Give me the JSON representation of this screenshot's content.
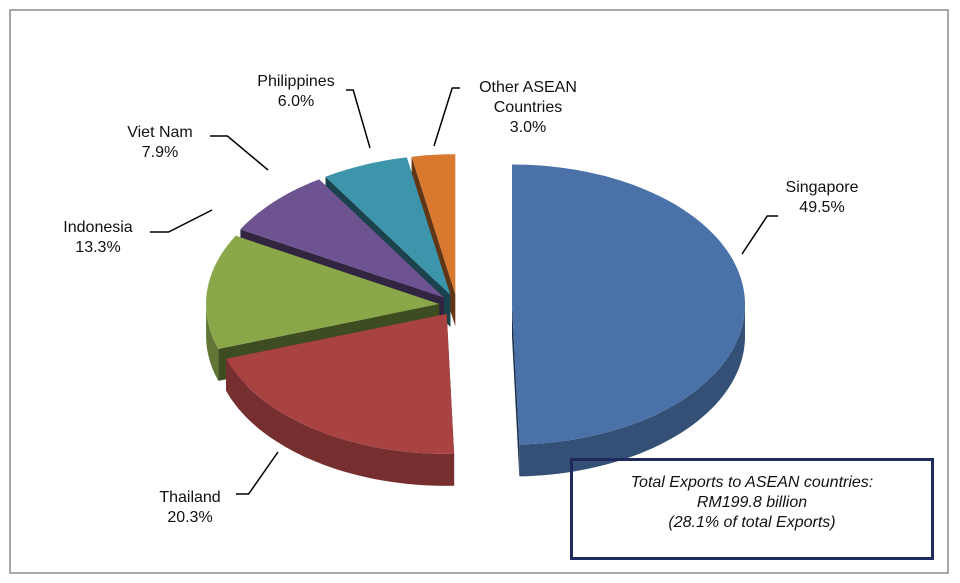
{
  "chart_data": {
    "type": "pie3d",
    "categories": [
      "Singapore",
      "Thailand",
      "Indonesia",
      "Viet Nam",
      "Philippines",
      "Other ASEAN Countries"
    ],
    "values": [
      49.5,
      20.3,
      13.3,
      7.9,
      6.0,
      3.0
    ],
    "value_labels": [
      "49.5%",
      "20.3%",
      "13.3%",
      "7.9%",
      "6.0%",
      "3.0%"
    ],
    "colors": [
      "#4a72a8",
      "#a84342",
      "#8aa84a",
      "#6e5391",
      "#3c95ab",
      "#d9782f"
    ],
    "annotation": [
      "Total Exports to ASEAN countries:",
      "RM199.8 billion",
      "(28.1% of total Exports)"
    ]
  }
}
